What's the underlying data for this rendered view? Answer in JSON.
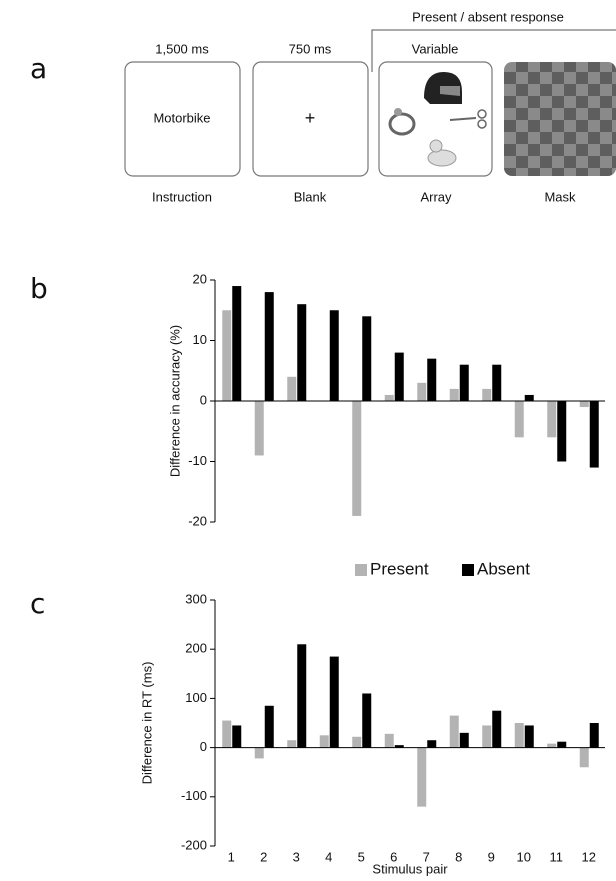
{
  "panel_a": {
    "label": "a",
    "bracket_label": "Present / absent response",
    "frames": [
      {
        "duration": "1,500 ms",
        "content": "Motorbike",
        "name": "Instruction"
      },
      {
        "duration": "750 ms",
        "content": "+",
        "name": "Blank"
      },
      {
        "duration": "Variable",
        "name": "Array"
      },
      {
        "name": "Mask"
      }
    ]
  },
  "chart_data": [
    {
      "type": "bar",
      "panel_label": "b",
      "y_label": "Difference in accuracy (%)",
      "ylim": [
        -20,
        20
      ],
      "yticks": [
        -20,
        -10,
        0,
        10,
        20
      ],
      "series": [
        {
          "color": "#b3b3b3",
          "values": [
            15,
            -9,
            4,
            0,
            -19,
            1,
            3,
            2,
            2,
            -6,
            -6,
            -1
          ]
        },
        {
          "color": "#000000",
          "values": [
            19,
            18,
            16,
            15,
            14,
            8,
            7,
            6,
            6,
            1,
            -10,
            -11
          ]
        }
      ]
    },
    {
      "type": "bar",
      "panel_label": "c",
      "y_label": "Difference in RT (ms)",
      "x_label": "Stimulus pair",
      "categories": [
        "1",
        "2",
        "3",
        "4",
        "5",
        "6",
        "7",
        "8",
        "9",
        "10",
        "11",
        "12"
      ],
      "ylim": [
        -200,
        300
      ],
      "yticks": [
        -200,
        -100,
        0,
        100,
        200,
        300
      ],
      "series": [
        {
          "name": "Present",
          "color": "#b3b3b3",
          "values": [
            55,
            -22,
            15,
            25,
            22,
            28,
            -120,
            65,
            45,
            50,
            8,
            -40
          ]
        },
        {
          "name": "Absent",
          "color": "#000000",
          "values": [
            45,
            85,
            210,
            185,
            110,
            5,
            15,
            30,
            75,
            45,
            12,
            50
          ]
        }
      ]
    }
  ]
}
